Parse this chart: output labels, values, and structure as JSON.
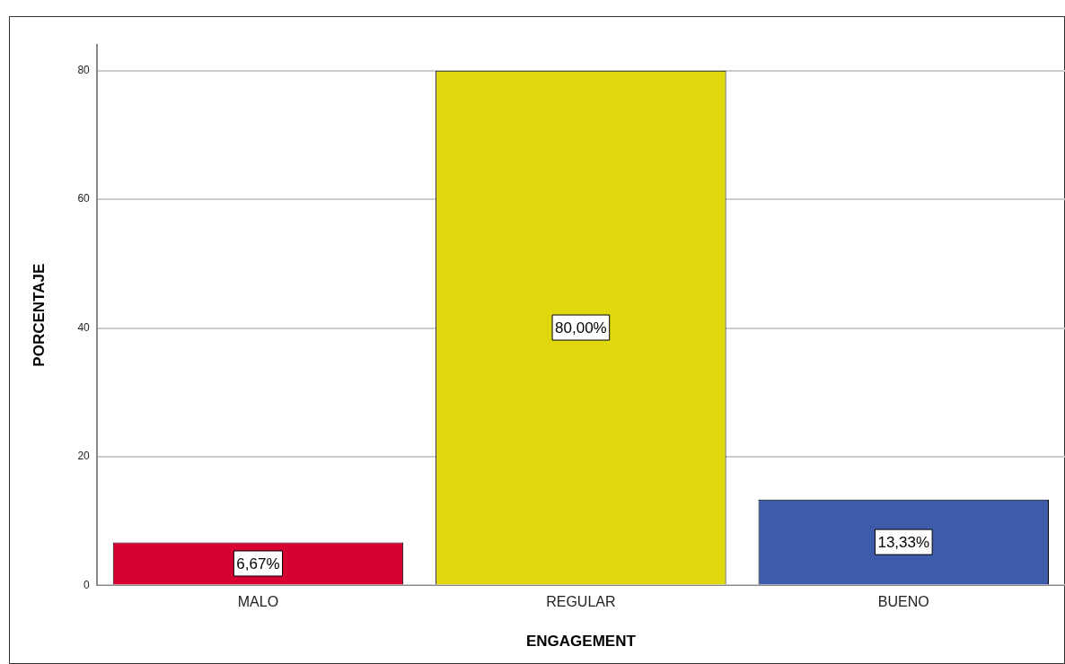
{
  "chart_data": {
    "type": "bar",
    "xlabel": "ENGAGEMENT",
    "ylabel": "PORCENTAJE",
    "categories": [
      "MALO",
      "REGULAR",
      "BUENO"
    ],
    "values": [
      6.67,
      80,
      13.33
    ],
    "colors": [
      "#d70032",
      "#e1d70e",
      "#3d5ba9"
    ],
    "value_labels": [
      "6,67%",
      "80,00%",
      "13,33%"
    ],
    "ylim": [
      0,
      84
    ],
    "yticks": [
      0,
      20,
      40,
      60,
      80
    ],
    "grid": "y",
    "legend": false
  }
}
